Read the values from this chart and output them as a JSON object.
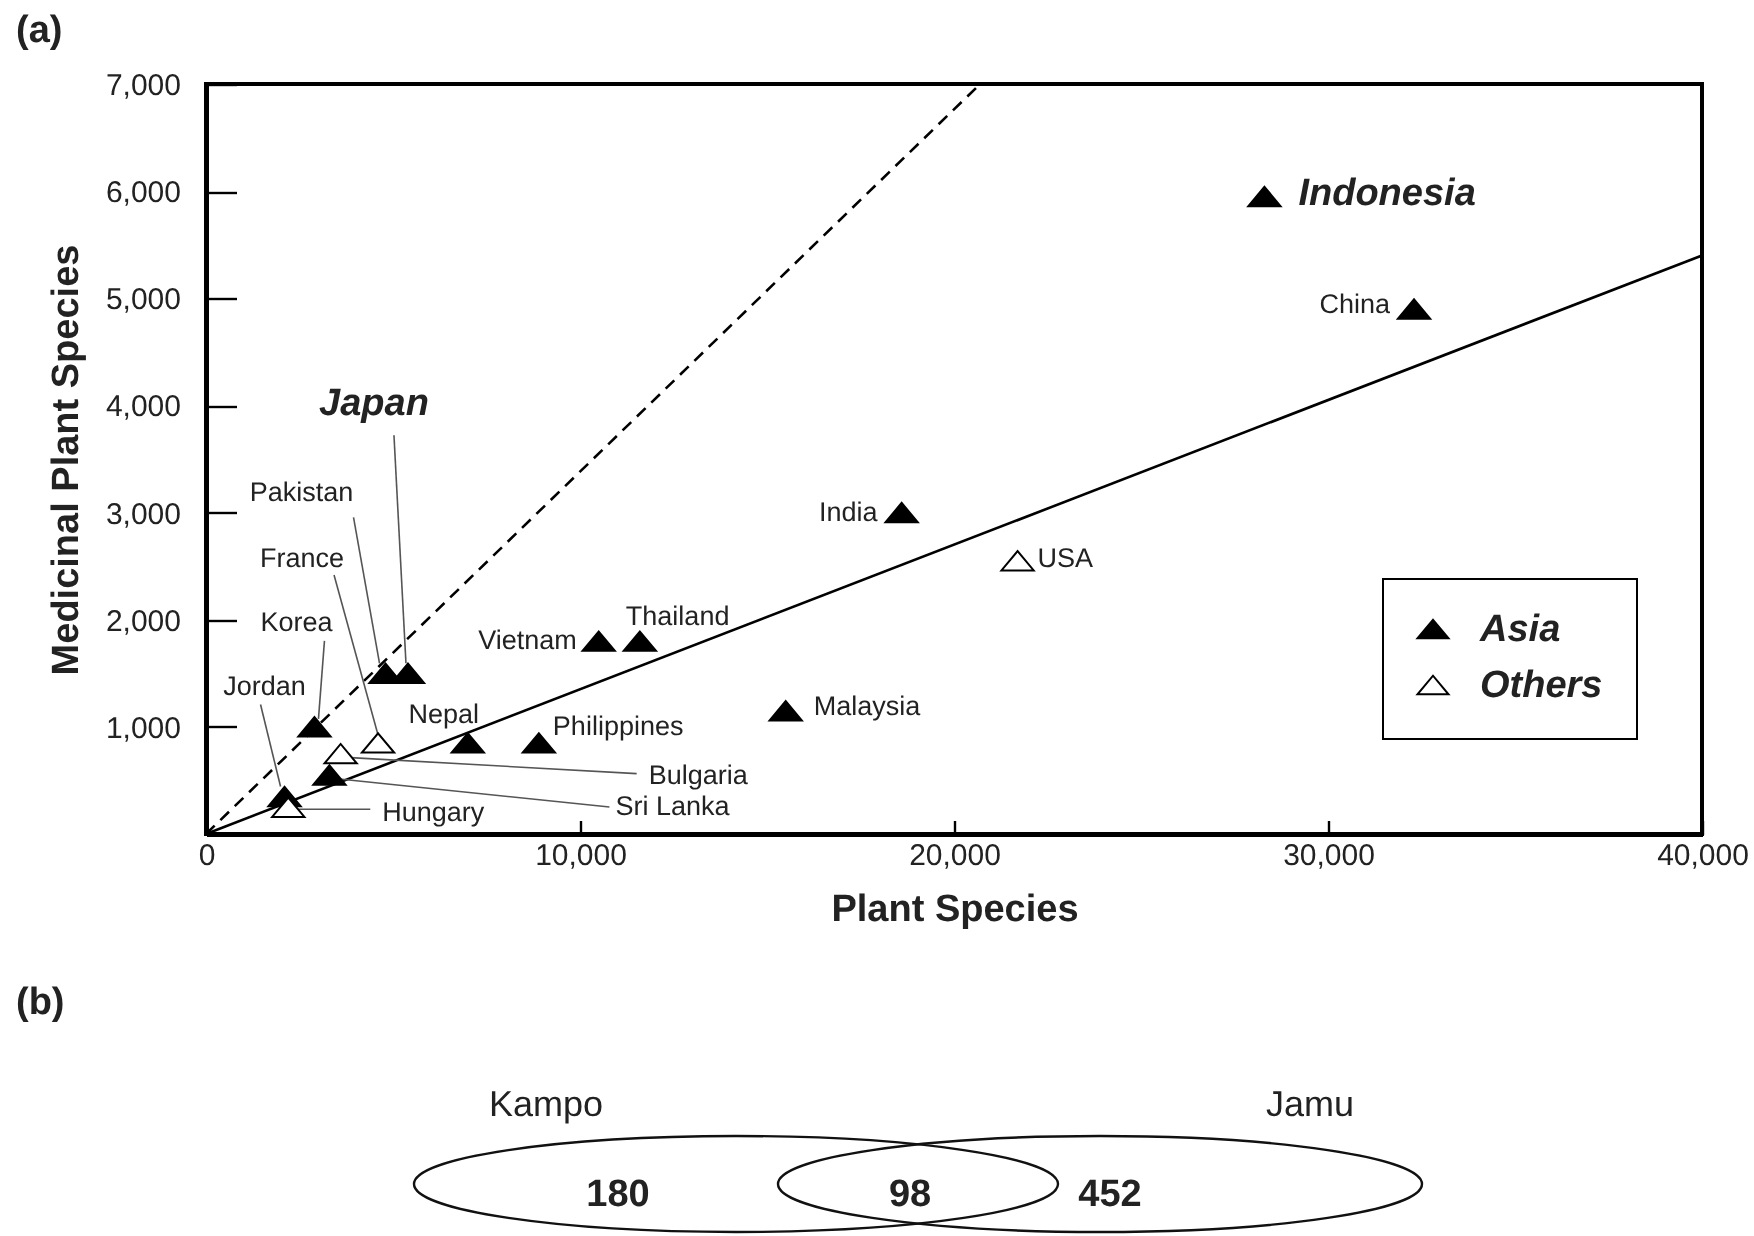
{
  "chart_data": [
    {
      "type": "scatter",
      "title": "(a)",
      "xlabel": "Plant Species",
      "ylabel": "Medicinal Plant Species",
      "xlim": [
        0,
        40000
      ],
      "ylim": [
        0,
        7000
      ],
      "xticks": [
        0,
        {
          "value": 10000,
          "label": "10,000"
        },
        {
          "value": 20000,
          "label": "20,000"
        },
        {
          "value": 30000,
          "label": "30,000"
        },
        {
          "value": 40000,
          "label": "40,000"
        }
      ],
      "yticks": [
        {
          "value": 1000,
          "label": "1,000"
        },
        {
          "value": 2000,
          "label": "2,000"
        },
        {
          "value": 3000,
          "label": "3,000"
        },
        {
          "value": 4000,
          "label": "4,000"
        },
        {
          "value": 5000,
          "label": "5,000"
        },
        {
          "value": 6000,
          "label": "6,000"
        },
        {
          "value": 7000,
          "label": "7,000"
        }
      ],
      "marker": "triangle",
      "legend": "bottom right",
      "series": [
        {
          "type": "line",
          "color": "#000000",
          "line_style": "dashed",
          "marker": "none",
          "x": [
            0,
            20700
          ],
          "values": [
            0,
            7000
          ]
        },
        {
          "type": "line",
          "color": "#000000",
          "line_style": "solid",
          "marker": "none",
          "x": [
            0,
            40000
          ],
          "values": [
            0,
            5400
          ]
        },
        {
          "name": "Asia",
          "color": "#000000",
          "x": [
            28300,
            32300,
            18600,
            5400,
            4800,
            2900,
            2100,
            3300,
            7000,
            8900,
            10500,
            11600,
            15500
          ],
          "values": [
            5950,
            4900,
            3000,
            1500,
            1500,
            1000,
            350,
            550,
            850,
            850,
            1800,
            1800,
            1150
          ]
        },
        {
          "name": "Others",
          "color": "#ffffff",
          "x": [
            21700,
            4600,
            3600,
            2200
          ],
          "values": [
            2550,
            850,
            750,
            250
          ]
        }
      ],
      "annotations": [
        {
          "text": "Indonesia",
          "x": 28300,
          "y": 5950
        },
        {
          "text": "China",
          "x": 32300,
          "y": 4900
        },
        {
          "text": "India",
          "x": 18600,
          "y": 3000
        },
        {
          "text": "Japan",
          "x": 5400,
          "y": 1500
        },
        {
          "text": "Pakistan",
          "x": 4800,
          "y": 1500
        },
        {
          "text": "Korea",
          "x": 2900,
          "y": 1000
        },
        {
          "text": "Jordan",
          "x": 2100,
          "y": 350
        },
        {
          "text": "Sri Lanka",
          "x": 3300,
          "y": 550
        },
        {
          "text": "Nepal",
          "x": 7000,
          "y": 850
        },
        {
          "text": "Philippines",
          "x": 8900,
          "y": 850
        },
        {
          "text": "Vietnam",
          "x": 10500,
          "y": 1800
        },
        {
          "text": "Thailand",
          "x": 11600,
          "y": 1800
        },
        {
          "text": "Malaysia",
          "x": 15500,
          "y": 1150
        },
        {
          "text": "USA",
          "x": 21700,
          "y": 2550
        },
        {
          "text": "France",
          "x": 4600,
          "y": 850
        },
        {
          "text": "Bulgaria",
          "x": 3600,
          "y": 750
        },
        {
          "text": "Hungary",
          "x": 2200,
          "y": 250
        }
      ]
    },
    {
      "type": "other",
      "title": "(b)",
      "categories": [
        "Kampo",
        null,
        "Jamu"
      ],
      "values": [
        180,
        98,
        452
      ],
      "data_labels": true
    }
  ]
}
